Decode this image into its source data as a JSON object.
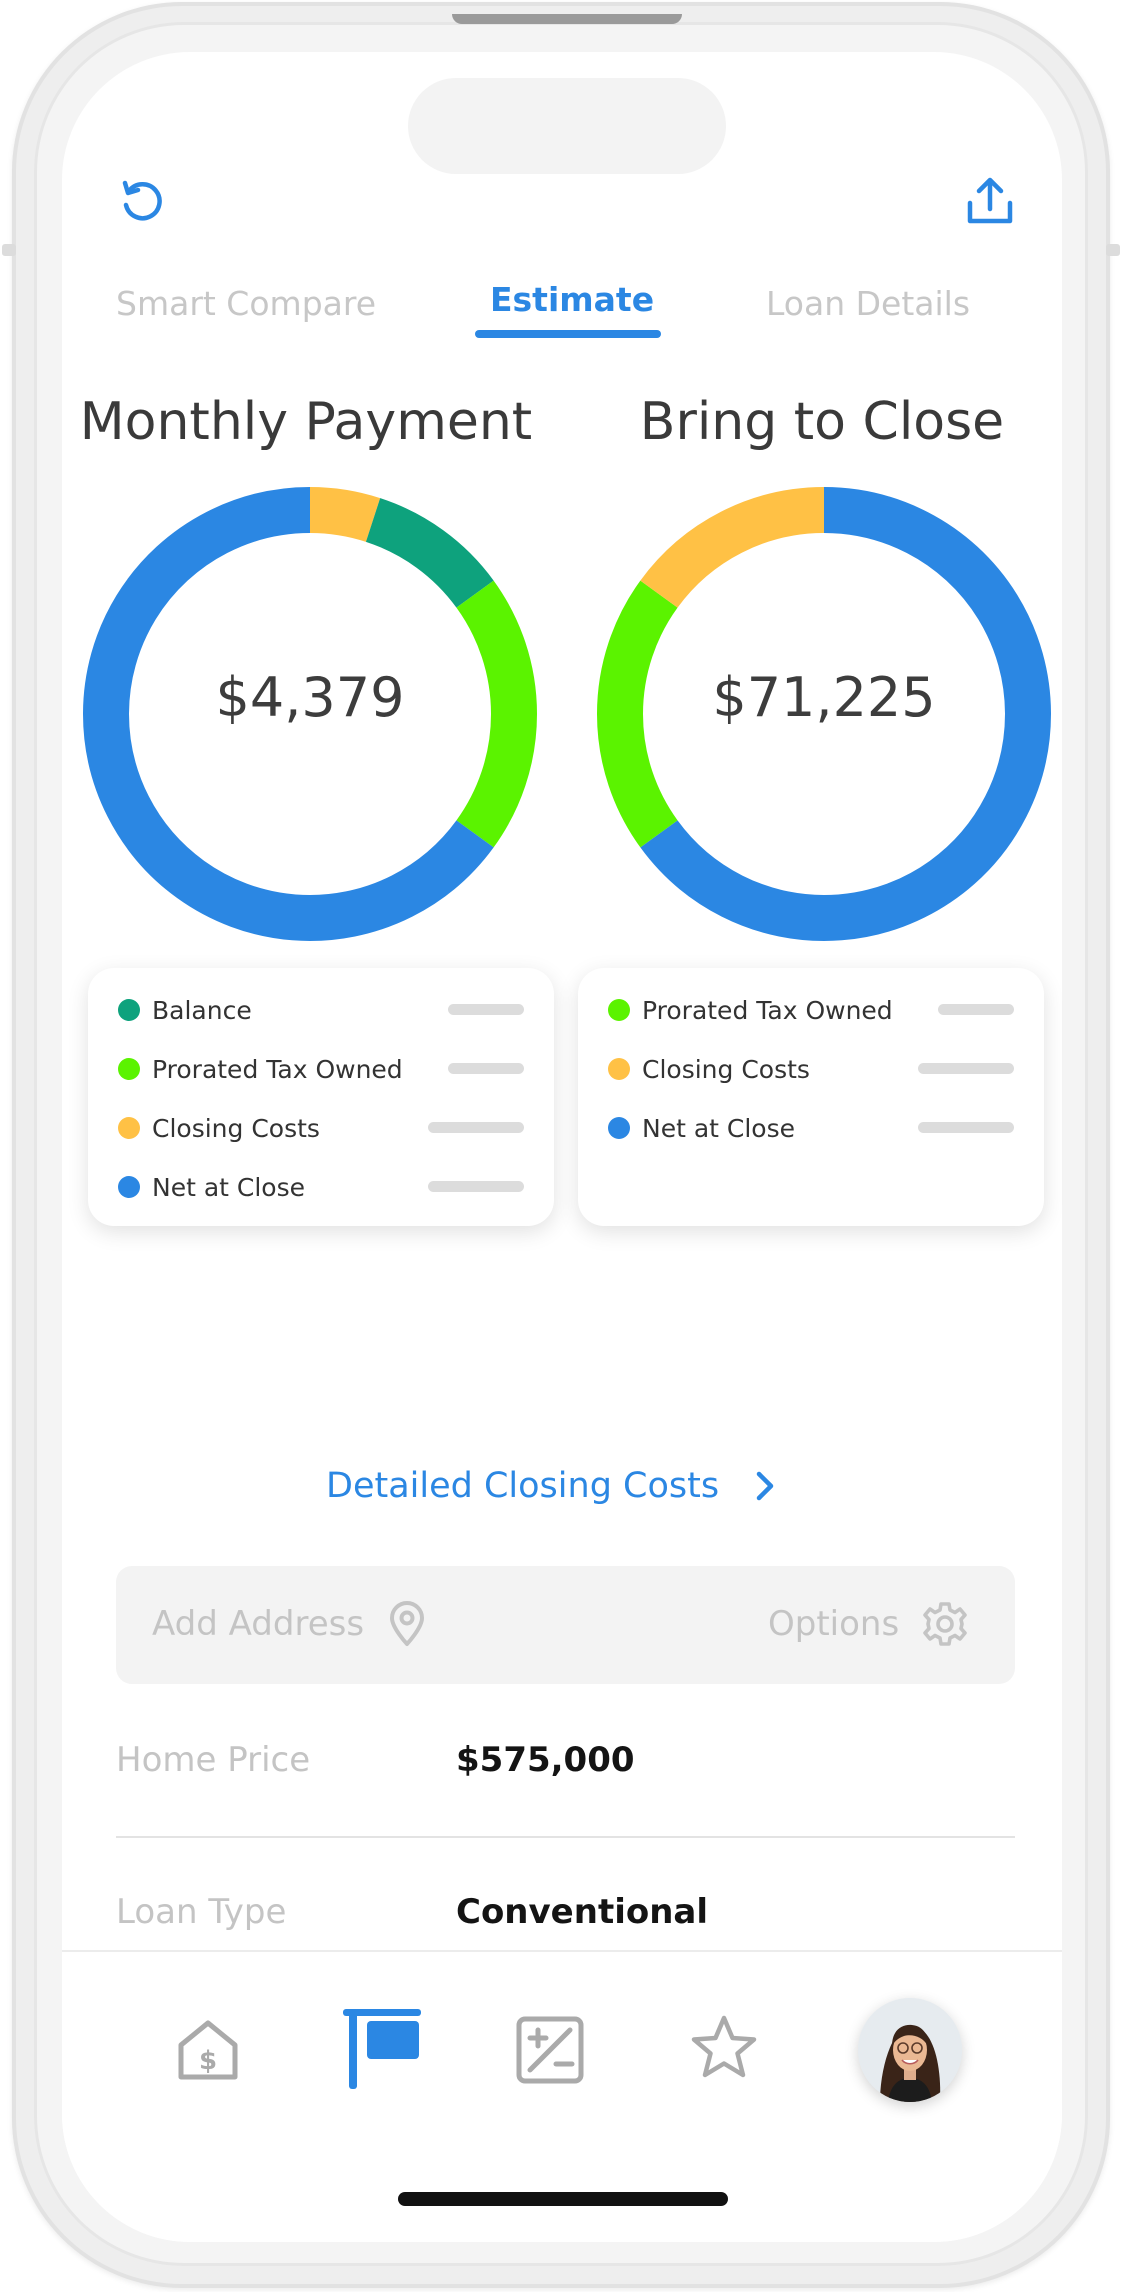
{
  "header": {
    "refresh_icon": "refresh-icon",
    "share_icon": "share-upload-icon"
  },
  "tabs": [
    {
      "label": "Smart Compare",
      "active": false
    },
    {
      "label": "Estimate",
      "active": true
    },
    {
      "label": "Loan Details",
      "active": false
    }
  ],
  "charts": {
    "monthly": {
      "title": "Monthly Payment",
      "center_value": "$4,379"
    },
    "close": {
      "title": "Bring to Close",
      "center_value": "$71,225"
    }
  },
  "chart_data": [
    {
      "type": "pie",
      "title": "Monthly Payment",
      "categories": [
        "Closing Costs",
        "Balance",
        "Prorated Tax Owned",
        "Net at Close"
      ],
      "values": [
        5,
        10,
        20,
        65
      ],
      "colors": [
        "#ffc145",
        "#0ea27d",
        "#5bf300",
        "#2b87e3"
      ]
    },
    {
      "type": "pie",
      "title": "Bring to Close",
      "categories": [
        "Net at Close",
        "Prorated Tax Owned",
        "Closing Costs"
      ],
      "values": [
        65,
        20,
        15
      ],
      "colors": [
        "#2b87e3",
        "#5bf300",
        "#ffc145"
      ]
    }
  ],
  "legends": {
    "monthly": [
      {
        "label": "Balance",
        "color": "#0ea27d"
      },
      {
        "label": "Prorated Tax Owned",
        "color": "#5bf300"
      },
      {
        "label": "Closing Costs",
        "color": "#ffc145"
      },
      {
        "label": "Net at Close",
        "color": "#2b87e3"
      }
    ],
    "close": [
      {
        "label": "Prorated Tax Owned",
        "color": "#5bf300"
      },
      {
        "label": "Closing Costs",
        "color": "#ffc145"
      },
      {
        "label": "Net at Close",
        "color": "#2b87e3"
      }
    ]
  },
  "detailed_link": {
    "label": "Detailed Closing Costs"
  },
  "address_bar": {
    "address_placeholder": "Add Address",
    "options_label": "Options"
  },
  "fields": {
    "home_price_label": "Home Price",
    "home_price_value": "$575,000",
    "loan_type_label": "Loan Type",
    "loan_type_value": "Conventional"
  },
  "bottom_nav": {
    "items": [
      {
        "icon": "house-dollar-icon",
        "active": false
      },
      {
        "icon": "for-sale-sign-icon",
        "active": true
      },
      {
        "icon": "calculator-icon",
        "active": false
      },
      {
        "icon": "star-icon",
        "active": false
      },
      {
        "icon": "avatar",
        "active": false
      }
    ]
  },
  "colors": {
    "accent": "#2b87e3",
    "inactive": "#c7c7c7"
  }
}
